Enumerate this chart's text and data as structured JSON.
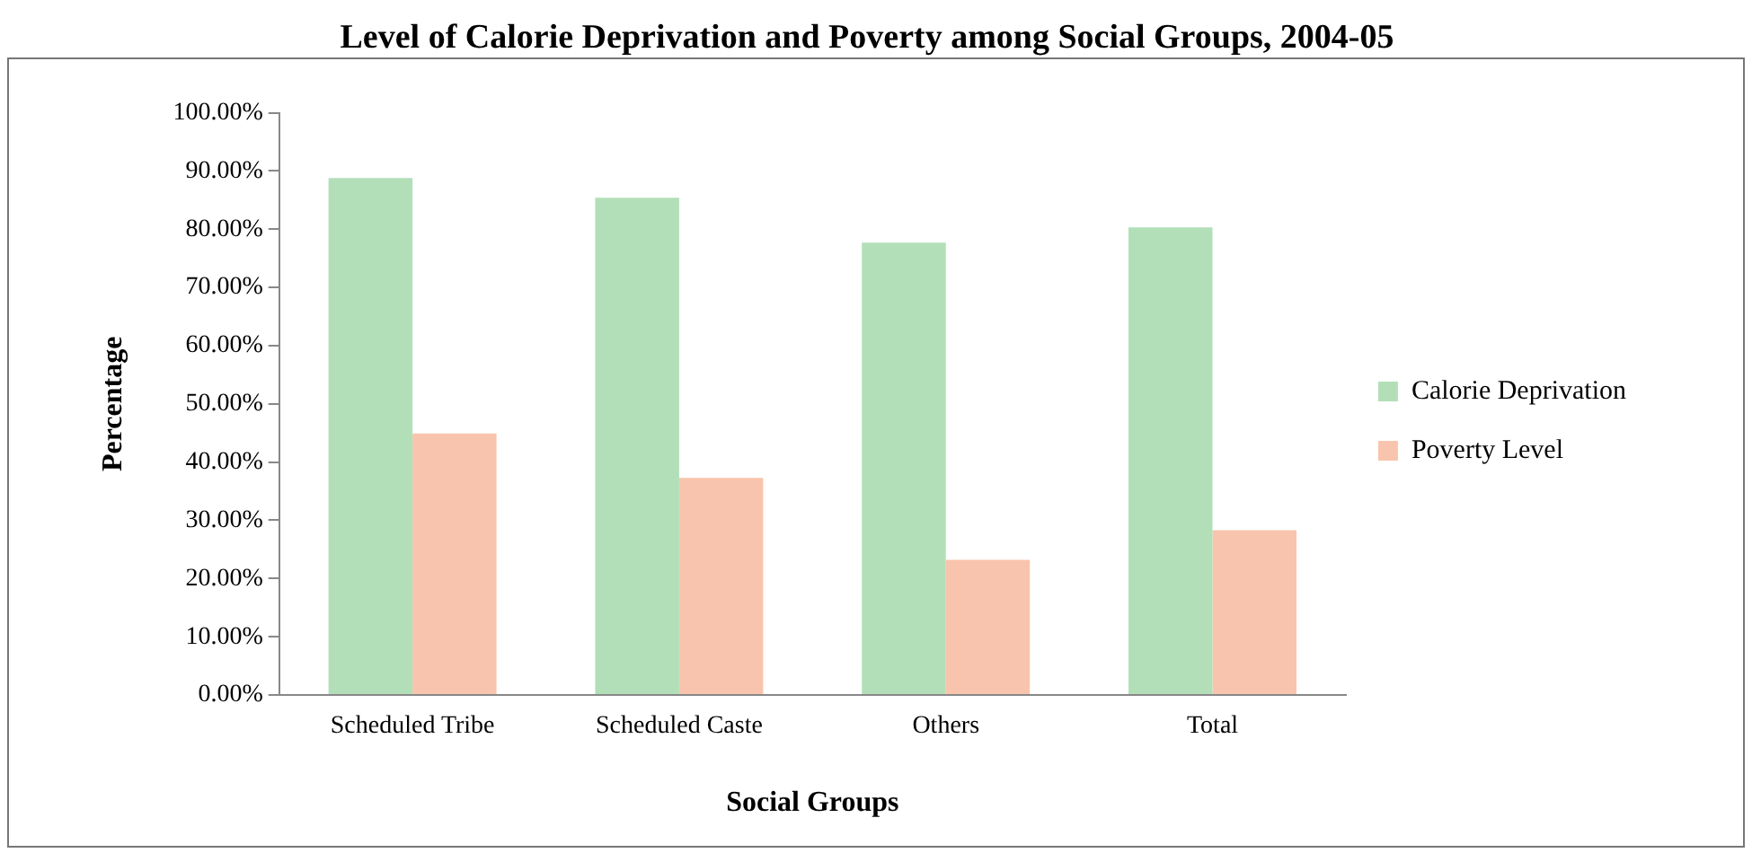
{
  "chart_data": {
    "type": "bar",
    "title": "Level of Calorie Deprivation and Poverty among Social Groups, 2004-05",
    "xlabel": "Social Groups",
    "ylabel": "Percentage",
    "categories": [
      "Scheduled Tribe",
      "Scheduled Caste",
      "Others",
      "Total"
    ],
    "series": [
      {
        "name": "Calorie Deprivation",
        "color": "#b3dfb8",
        "values": [
          88.8,
          85.4,
          77.7,
          80.3
        ]
      },
      {
        "name": "Poverty Level",
        "color": "#f9c4ad",
        "values": [
          44.9,
          37.3,
          23.2,
          28.3
        ]
      }
    ],
    "ylim": [
      0,
      100
    ],
    "yticks": [
      {
        "value": 0,
        "label": "0.00%"
      },
      {
        "value": 10,
        "label": "10.00%"
      },
      {
        "value": 20,
        "label": "20.00%"
      },
      {
        "value": 30,
        "label": "30.00%"
      },
      {
        "value": 40,
        "label": "40.00%"
      },
      {
        "value": 50,
        "label": "50.00%"
      },
      {
        "value": 60,
        "label": "60.00%"
      },
      {
        "value": 70,
        "label": "70.00%"
      },
      {
        "value": 80,
        "label": "80.00%"
      },
      {
        "value": 90,
        "label": "90.00%"
      },
      {
        "value": 100,
        "label": "100.00%"
      }
    ],
    "grid": false,
    "legend": "right"
  }
}
